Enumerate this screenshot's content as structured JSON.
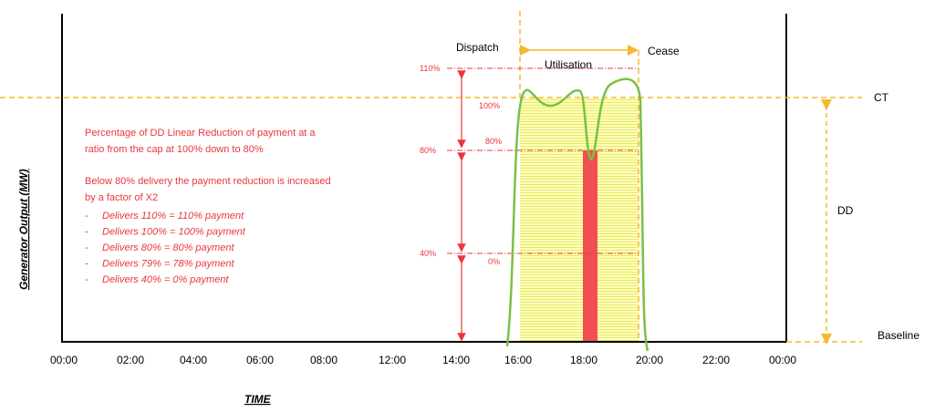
{
  "y_axis_title": "Generator Output  (MW)",
  "x_axis_title": "TIME",
  "time_labels": [
    "00:00",
    "02:00",
    "04:00",
    "06:00",
    "08:00",
    "12:00",
    "14:00",
    "16:00",
    "18:00",
    "20:00",
    "22:00",
    "00:00"
  ],
  "markers": {
    "dispatch": "Dispatch",
    "utilisation": "Utilisation",
    "cease": "Cease",
    "ct": "CT",
    "dd": "DD",
    "baseline": "Baseline"
  },
  "levels": {
    "l110": "110%",
    "l100": "100%",
    "l80": "80%",
    "l80b": "80%",
    "l40": "40%",
    "l0": "0%"
  },
  "notes": [
    "Percentage of DD Linear Reduction of payment at a",
    "ratio from the cap at 100% down to 80%",
    "Below 80% delivery the payment reduction is increased",
    "by a factor of X2"
  ],
  "bullets": [
    "Delivers 110% = 110% payment",
    "Delivers 100% = 100% payment",
    "Delivers 80% = 80% payment",
    "Delivers 79% = 78% payment",
    "Delivers 40% = 0% payment"
  ]
}
